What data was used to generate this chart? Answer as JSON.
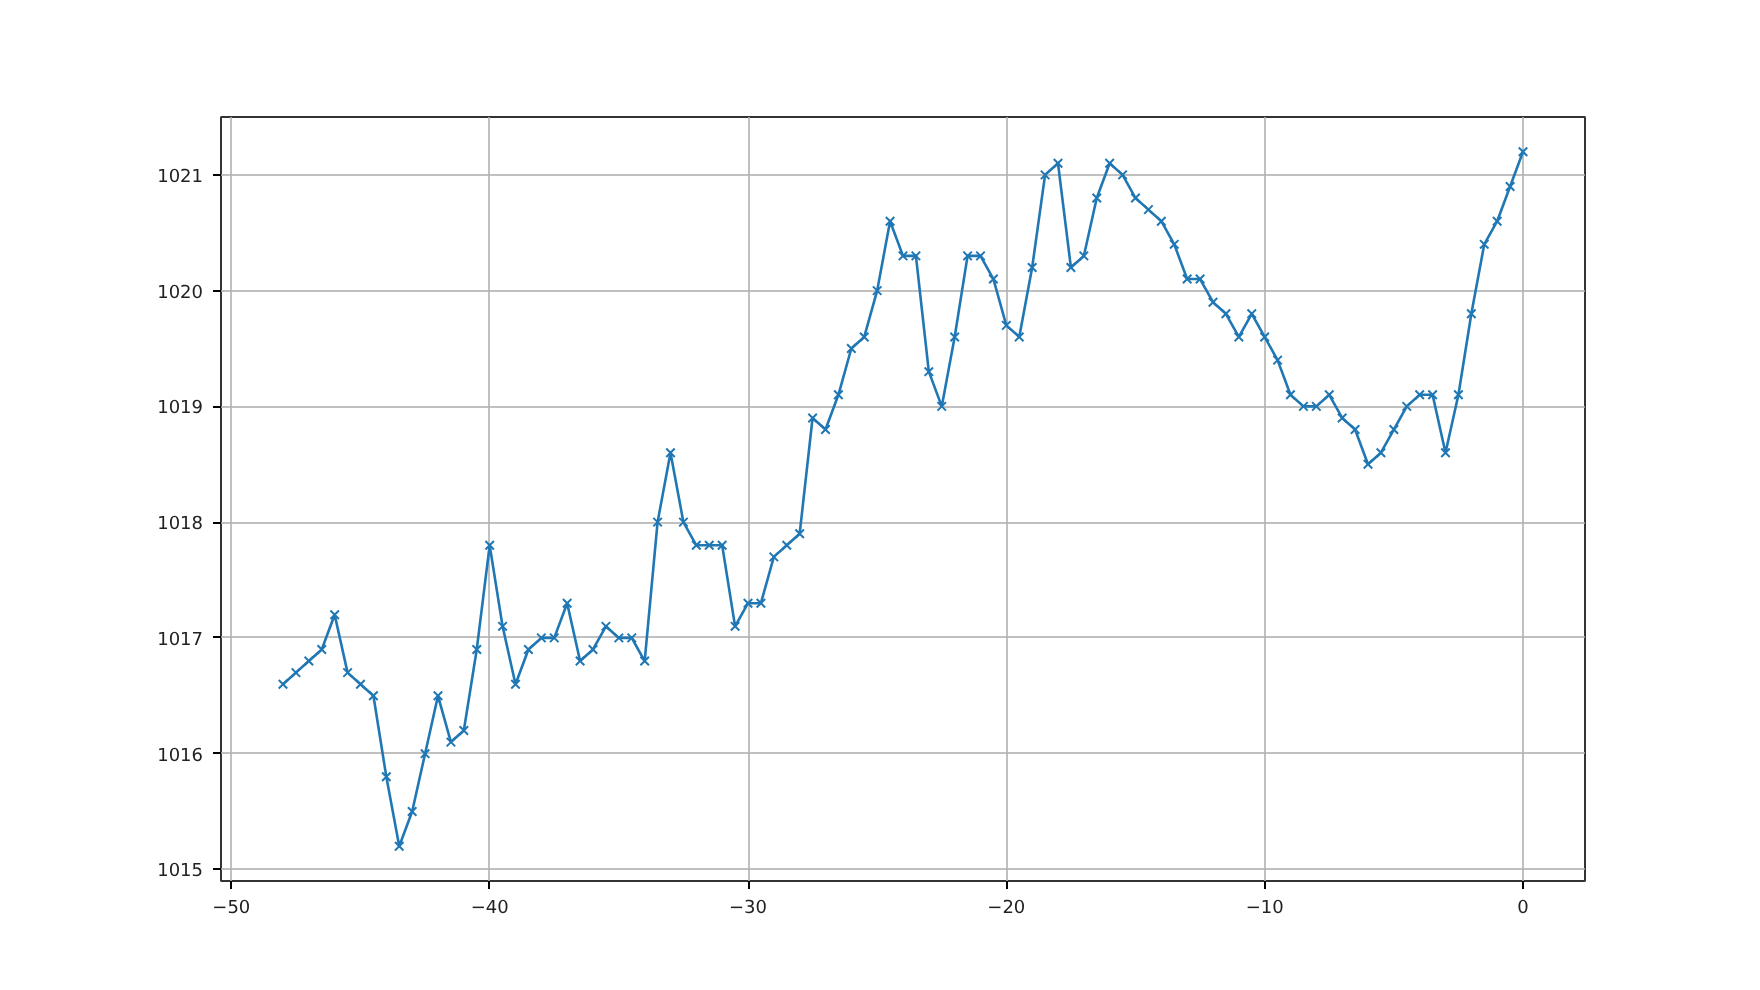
{
  "chart_data": {
    "type": "line",
    "x": [
      -48,
      -47.5,
      -47,
      -46.5,
      -46,
      -45.5,
      -45,
      -44.5,
      -44,
      -43.5,
      -43,
      -42.5,
      -42,
      -41.5,
      -41,
      -40.5,
      -40,
      -39.5,
      -39,
      -38.5,
      -38,
      -37.5,
      -37,
      -36.5,
      -36,
      -35.5,
      -35,
      -34.5,
      -34,
      -33.5,
      -33,
      -32.5,
      -32,
      -31.5,
      -31,
      -30.5,
      -30,
      -29.5,
      -29,
      -28.5,
      -28,
      -27.5,
      -27,
      -26.5,
      -26,
      -25.5,
      -25,
      -24.5,
      -24,
      -23.5,
      -23,
      -22.5,
      -22,
      -21.5,
      -21,
      -20.5,
      -20,
      -19.5,
      -19,
      -18.5,
      -18,
      -17.5,
      -17,
      -16.5,
      -16,
      -15.5,
      -15,
      -14.5,
      -14,
      -13.5,
      -13,
      -12.5,
      -12,
      -11.5,
      -11,
      -10.5,
      -10,
      -9.5,
      -9,
      -8.5,
      -8,
      -7.5,
      -7,
      -6.5,
      -6,
      -5.5,
      -5,
      -4.5,
      -4,
      -3.5,
      -3,
      -2.5,
      -2,
      -1.5,
      -1,
      -0.5,
      0
    ],
    "series": [
      {
        "color": "#1f77b4",
        "values": [
          1016.6,
          1016.7,
          1016.8,
          1016.9,
          1017.2,
          1016.7,
          1016.6,
          1016.5,
          1015.8,
          1015.2,
          1015.5,
          1016.0,
          1016.5,
          1016.1,
          1016.2,
          1016.9,
          1017.8,
          1017.1,
          1016.6,
          1016.9,
          1017.0,
          1017.0,
          1017.3,
          1016.8,
          1016.9,
          1017.1,
          1017.0,
          1017.0,
          1016.8,
          1018.0,
          1018.6,
          1018.0,
          1017.8,
          1017.8,
          1017.8,
          1017.1,
          1017.3,
          1017.3,
          1017.7,
          1017.8,
          1017.9,
          1018.9,
          1018.8,
          1019.1,
          1019.5,
          1019.6,
          1020.0,
          1020.6,
          1020.3,
          1020.3,
          1019.3,
          1019.0,
          1019.6,
          1020.3,
          1020.3,
          1020.1,
          1019.7,
          1019.6,
          1020.2,
          1021.0,
          1021.1,
          1020.2,
          1020.3,
          1020.8,
          1021.1,
          1021.0,
          1020.8,
          1020.7,
          1020.6,
          1020.4,
          1020.1,
          1020.1,
          1019.9,
          1019.8,
          1019.6,
          1019.8,
          1019.6,
          1019.4,
          1019.1,
          1019.0,
          1019.0,
          1019.1,
          1018.9,
          1018.8,
          1018.5,
          1018.6,
          1018.8,
          1019.0,
          1019.1,
          1019.1,
          1018.6,
          1019.1,
          1019.8,
          1020.4,
          1020.6,
          1020.9,
          1021.2
        ]
      }
    ],
    "xlim": [
      -50.4,
      2.4
    ],
    "ylim": [
      1014.9,
      1021.5
    ],
    "xticks": [
      {
        "value": -50,
        "label": "−50"
      },
      {
        "value": -40,
        "label": "−40"
      },
      {
        "value": -30,
        "label": "−30"
      },
      {
        "value": -20,
        "label": "−20"
      },
      {
        "value": -10,
        "label": "−10"
      },
      0
    ],
    "yticks": [
      1015,
      1016,
      1017,
      1018,
      1019,
      1020,
      1021
    ],
    "grid": true,
    "marker": "cross",
    "line_style": "solid"
  }
}
